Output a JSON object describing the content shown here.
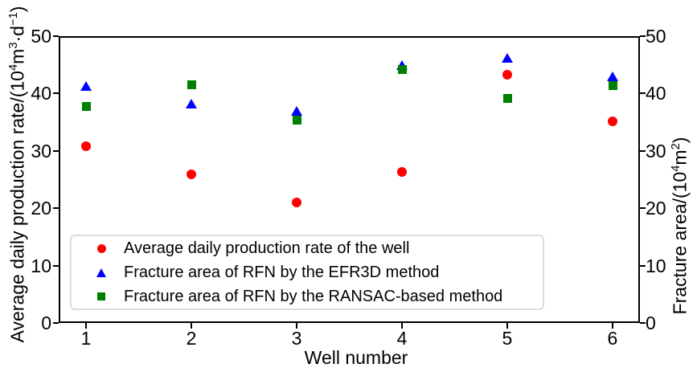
{
  "chart_data": {
    "type": "scatter",
    "title": "",
    "xlabel": "Well number",
    "ylabel_left": "Average daily production rate/(10⁴m³·d⁻¹)",
    "ylabel_right": "Fracture area/(10⁴m²)",
    "ylabel_left_parts": [
      [
        "t",
        "Average daily production rate/(10"
      ],
      [
        "s",
        "4"
      ],
      [
        "t",
        "m"
      ],
      [
        "s",
        "3"
      ],
      [
        "t",
        "·d"
      ],
      [
        "s",
        "−1"
      ],
      [
        "t",
        ")"
      ]
    ],
    "ylabel_right_parts": [
      [
        "t",
        "Fracture area/(10"
      ],
      [
        "s",
        "4"
      ],
      [
        "t",
        "m"
      ],
      [
        "s",
        "2"
      ],
      [
        "t",
        ")"
      ]
    ],
    "x": [
      1,
      2,
      3,
      4,
      5,
      6
    ],
    "xticks": [
      "1",
      "2",
      "3",
      "4",
      "5",
      "6"
    ],
    "yticks_left": [
      "0",
      "10",
      "20",
      "30",
      "40",
      "50"
    ],
    "yticks_right": [
      "0",
      "10",
      "20",
      "30",
      "40",
      "50"
    ],
    "xlim": [
      0.74,
      6.26
    ],
    "ylim": [
      0,
      50
    ],
    "grid": false,
    "legend_position": "lower-left-inside",
    "series": [
      {
        "name": "Average daily production rate of the well",
        "marker": "circle",
        "color": "#ff0000",
        "axis": "left",
        "values": [
          30.8,
          25.9,
          21.0,
          26.4,
          43.3,
          35.2
        ]
      },
      {
        "name": "Fracture area of RFN by the EFR3D method",
        "marker": "triangle",
        "color": "#0000ff",
        "axis": "right",
        "values": [
          41.3,
          38.2,
          37.0,
          45.0,
          46.2,
          43.0
        ]
      },
      {
        "name": "Fracture area of RFN by the RANSAC-based method",
        "marker": "square",
        "color": "#008000",
        "axis": "right",
        "values": [
          37.8,
          41.6,
          35.5,
          44.3,
          39.2,
          41.5
        ]
      }
    ]
  }
}
